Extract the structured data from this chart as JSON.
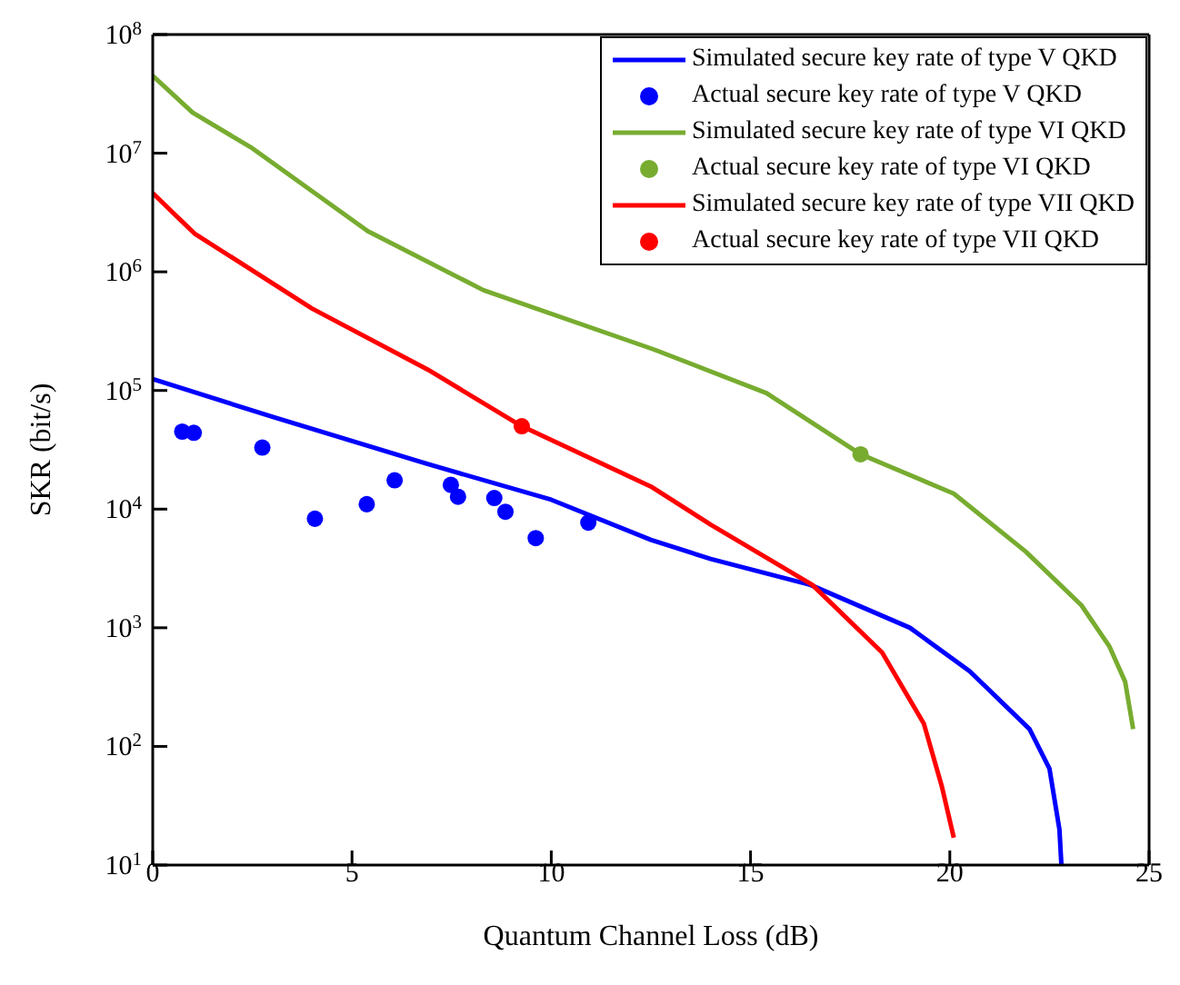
{
  "chart_data": {
    "type": "line",
    "xlabel": "Quantum Channel Loss (dB)",
    "ylabel": "SKR (bit/s)",
    "log": "y",
    "grid": false,
    "legend": "top right",
    "xlim": [
      0,
      25
    ],
    "xticks": [
      0,
      5,
      10,
      15,
      20,
      25
    ],
    "ylim": [
      10,
      100000000
    ],
    "yticks": [
      {
        "value": 10,
        "label": "10$^{1}$"
      },
      {
        "value": 100,
        "label": "10$^{2}$"
      },
      {
        "value": 1000,
        "label": "10$^{3}$"
      },
      {
        "value": 10000,
        "label": "10$^{4}$"
      },
      {
        "value": 100000,
        "label": "10$^{5}$"
      },
      {
        "value": 1000000,
        "label": "10$^{6}$"
      },
      {
        "value": 10000000,
        "label": "10$^{7}$"
      },
      {
        "value": 100000000,
        "label": "10$^{8}$"
      }
    ],
    "series": [
      {
        "name": "Simulated secure key rate of type V QKD",
        "type": "line",
        "marker": "none",
        "color": "#0000ff",
        "x": [
          0,
          3,
          6.9,
          10,
          12.5,
          14,
          16.5,
          19,
          20.5,
          22,
          22.5,
          22.75,
          22.8
        ],
        "values": [
          125000,
          60000,
          24000,
          12000,
          5500,
          3800,
          2300,
          1000,
          430,
          140,
          65,
          20,
          10
        ]
      },
      {
        "name": "Actual secure key rate of type V QKD",
        "type": "scatter",
        "marker": "circle",
        "color": "#0000ff",
        "x": [
          0.74,
          1.03,
          2.75,
          4.07,
          5.37,
          6.07,
          7.48,
          7.66,
          8.57,
          8.85,
          9.61,
          10.93
        ],
        "values": [
          45000,
          44000,
          33000,
          8300,
          11000,
          17500,
          16000,
          12700,
          12400,
          9500,
          5700,
          7700
        ]
      },
      {
        "name": "Simulated secure key rate of type VI QKD",
        "type": "line",
        "marker": "none",
        "color": "#77ac30",
        "x": [
          0,
          1,
          2.5,
          5.4,
          8.3,
          12.6,
          15.4,
          17.76,
          20.1,
          21.9,
          23.3,
          24,
          24.4,
          24.6
        ],
        "values": [
          45000000,
          22000000,
          11000000,
          2200000,
          700000,
          220000,
          95000,
          29000,
          13500,
          4400,
          1550,
          700,
          350,
          140
        ]
      },
      {
        "name": "Actual secure key rate of type VI QKD",
        "type": "scatter",
        "marker": "circle",
        "color": "#77ac30",
        "x": [
          17.76
        ],
        "values": [
          29000
        ]
      },
      {
        "name": "Simulated secure key rate of type VII QKD",
        "type": "line",
        "marker": "none",
        "color": "#ff0000",
        "x": [
          0,
          1.05,
          4,
          6.9,
          9.26,
          12.5,
          14,
          16.55,
          18.3,
          19.35,
          19.8,
          20.1
        ],
        "values": [
          4600000,
          2100000,
          490000,
          150000,
          50000,
          15500,
          7400,
          2300,
          620,
          155,
          46,
          17
        ]
      },
      {
        "name": "Actual secure key rate of type VII QKD",
        "type": "scatter",
        "marker": "circle",
        "color": "#ff0000",
        "x": [
          9.26
        ],
        "values": [
          50000
        ]
      }
    ]
  }
}
